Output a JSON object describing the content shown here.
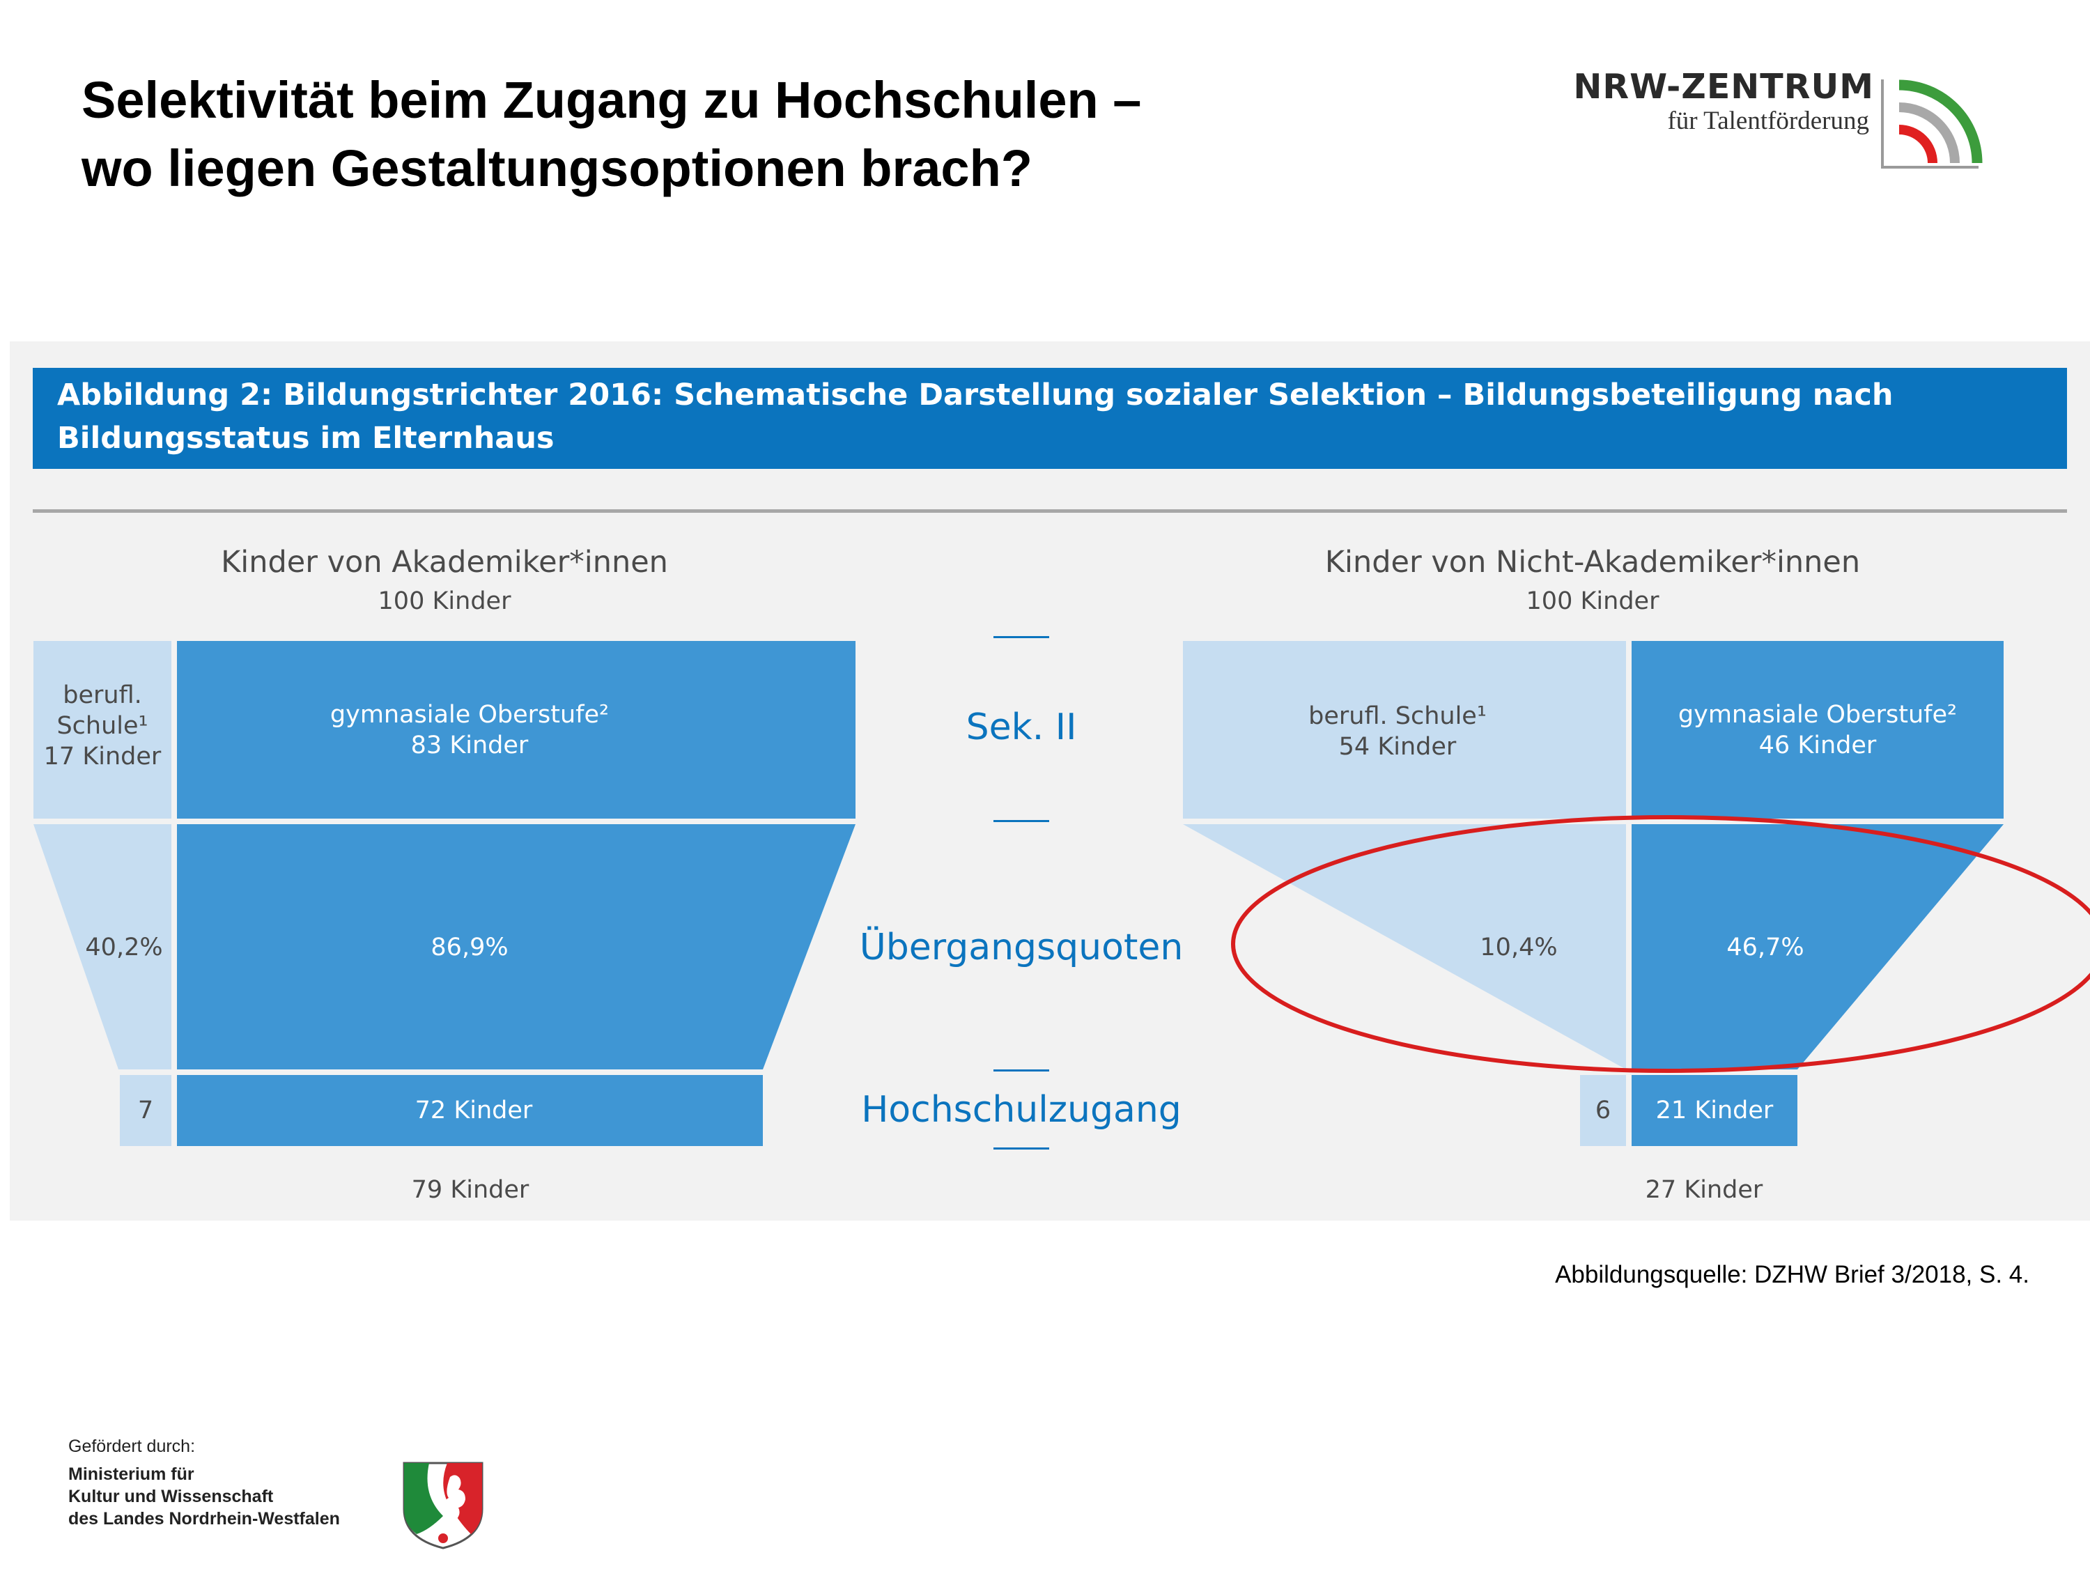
{
  "slide": {
    "title_lines": [
      "Selektivität beim Zugang zu Hochschulen –",
      "wo liegen Gestaltungsoptionen brach?"
    ]
  },
  "logo": {
    "name": "NRW-ZENTRUM",
    "tagline": "für Talentförderung",
    "icon": "signal-arcs-icon",
    "colors": [
      "#3c9c3c",
      "#9a9a9a",
      "#e02020"
    ]
  },
  "figure": {
    "title": "Abbildung 2: Bildungstrichter 2016: Schematische Darstellung sozialer Selektion – Bildungsbeteiligung nach Bildungsstatus im Elternhaus",
    "stages": {
      "sek2": "Sek. II",
      "transition": "Übergangsquoten",
      "access": "Hochschulzugang"
    },
    "academic": {
      "title": "Kinder von Akademiker*innen",
      "count": "100 Kinder",
      "vocational_lines": [
        "berufl.",
        "Schule¹",
        "17 Kinder"
      ],
      "gymnasium_lines": [
        "gymnasiale Oberstufe²",
        "83 Kinder"
      ],
      "rate_vocational": "40,2%",
      "rate_gymnasium": "86,9%",
      "access_vocational": "7",
      "access_gymnasium": "72 Kinder",
      "total": "79 Kinder"
    },
    "non_academic": {
      "title": "Kinder von Nicht-Akademiker*innen",
      "count": "100 Kinder",
      "vocational_lines": [
        "berufl. Schule¹",
        "54 Kinder"
      ],
      "gymnasium_lines": [
        "gymnasiale Oberstufe²",
        "46 Kinder"
      ],
      "rate_vocational": "10,4%",
      "rate_gymnasium": "46,7%",
      "access_vocational": "6",
      "access_gymnasium": "21 Kinder",
      "total": "27 Kinder"
    },
    "colors": {
      "dark_blue": "#3f96d4",
      "light_blue": "#c6ddf1",
      "banner": "#0b74be",
      "highlight": "#d81e1e"
    }
  },
  "source": "Abbildungsquelle: DZHW Brief 3/2018, S. 4.",
  "funding": {
    "label": "Gefördert durch:",
    "ministry_lines": [
      "Ministerium für",
      "Kultur und Wissenschaft",
      "des Landes Nordrhein-Westfalen"
    ],
    "emblem_icon": "nrw-coat-of-arms-icon"
  }
}
